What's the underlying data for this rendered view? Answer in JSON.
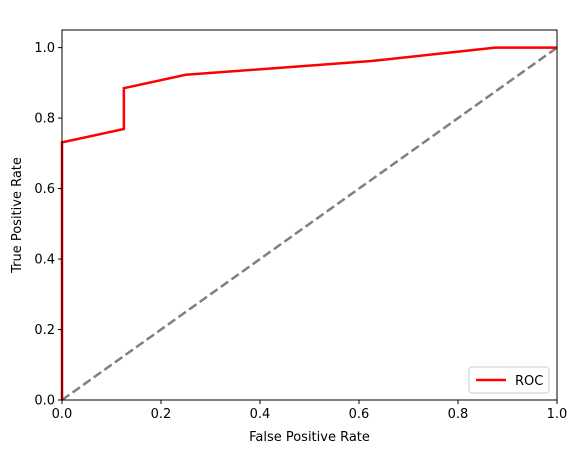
{
  "chart_data": {
    "type": "line",
    "title": "",
    "xlabel": "False Positive Rate",
    "ylabel": "True Positive Rate",
    "xlim": [
      0.0,
      1.0
    ],
    "ylim": [
      0.0,
      1.05
    ],
    "xticks": [
      0.0,
      0.2,
      0.4,
      0.6,
      0.8,
      1.0
    ],
    "xtick_labels": [
      "0.0",
      "0.2",
      "0.4",
      "0.6",
      "0.8",
      "1.0"
    ],
    "yticks": [
      0.0,
      0.2,
      0.4,
      0.6,
      0.8,
      1.0
    ],
    "ytick_labels": [
      "0.0",
      "0.2",
      "0.4",
      "0.6",
      "0.8",
      "1.0"
    ],
    "grid": false,
    "legend_position": "lower-right",
    "series": [
      {
        "name": "ROC",
        "color": "#ff0000",
        "style": "solid",
        "x": [
          0.0,
          0.0,
          0.125,
          0.125,
          0.25,
          0.625,
          0.875,
          1.0
        ],
        "y": [
          0.0,
          0.731,
          0.769,
          0.885,
          0.923,
          0.962,
          1.0,
          1.0
        ]
      },
      {
        "color": "#808080",
        "style": "dashed",
        "x": [
          0.0,
          1.0
        ],
        "y": [
          0.0,
          1.0
        ]
      }
    ]
  }
}
